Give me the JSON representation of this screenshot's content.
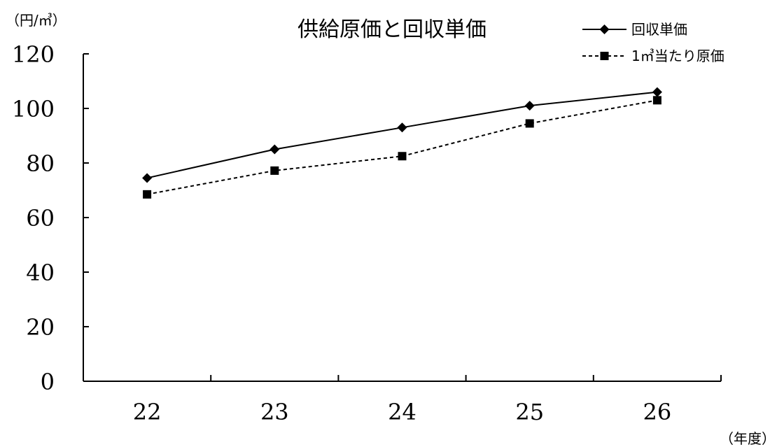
{
  "chart_data": {
    "type": "line",
    "title": "供給原価と回収単価",
    "ylabel": "（円/㎥）",
    "xlabel": "（年度）",
    "categories": [
      "22",
      "23",
      "24",
      "25",
      "26"
    ],
    "ylim": [
      0,
      120
    ],
    "yticks": [
      "0",
      "20",
      "40",
      "60",
      "80",
      "100",
      "120"
    ],
    "legend_position": "top-right",
    "grid": false,
    "series": [
      {
        "name": "回収単価",
        "values": [
          74.5,
          85,
          93,
          101,
          106
        ],
        "marker": "diamond",
        "line": "solid",
        "color": "#000000"
      },
      {
        "name": "1㎥当たり原価",
        "values": [
          68.5,
          77.2,
          82.5,
          94.5,
          103
        ],
        "marker": "square",
        "line": "dashed",
        "color": "#000000"
      }
    ]
  }
}
